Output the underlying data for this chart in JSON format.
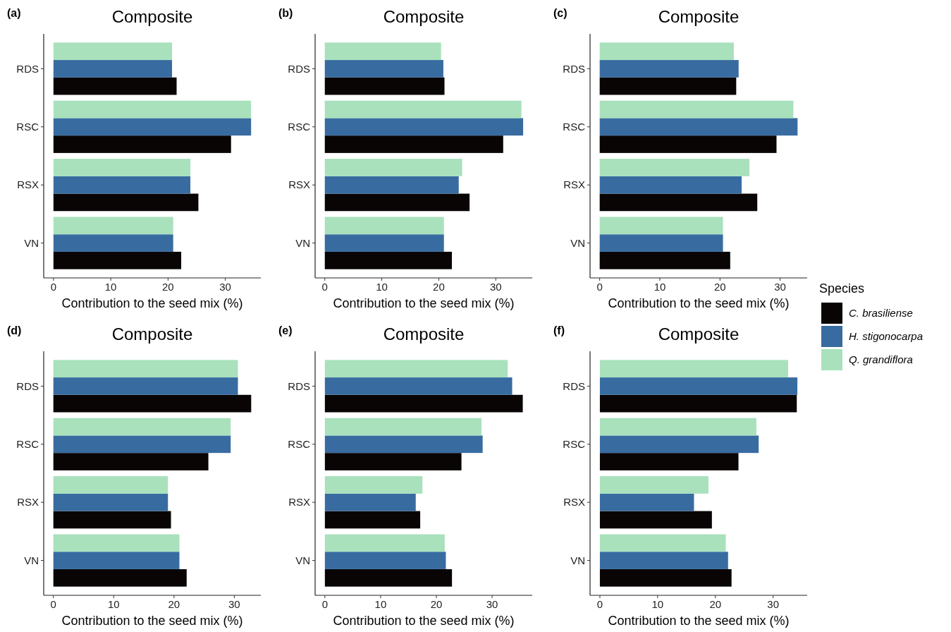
{
  "chart_data": [
    {
      "type": "bar",
      "orientation": "horizontal",
      "title": "Composite",
      "xlabel": "Contribution to the seed mix (%)",
      "annotations": [
        "(a)"
      ],
      "categories": [
        "RDS",
        "RSC",
        "RSX",
        "VN"
      ],
      "xlim": [
        -1.7,
        36.2
      ],
      "xticks": [
        0,
        10,
        20,
        30
      ],
      "grid": false,
      "series": [
        {
          "color": "#0a0505",
          "values": [
            21.5,
            31.0,
            25.3,
            22.3
          ]
        },
        {
          "color": "#386ca0",
          "values": [
            20.7,
            34.5,
            23.9,
            20.9
          ]
        },
        {
          "color": "#a8e1bc",
          "values": [
            20.7,
            34.5,
            23.9,
            20.9
          ]
        }
      ]
    },
    {
      "type": "bar",
      "orientation": "horizontal",
      "title": "Composite",
      "xlabel": "Contribution to the seed mix (%)",
      "annotations": [
        "(b)"
      ],
      "categories": [
        "RDS",
        "RSC",
        "RSX",
        "VN"
      ],
      "xlim": [
        -1.7,
        36.4
      ],
      "xticks": [
        0,
        10,
        20,
        30
      ],
      "grid": false,
      "series": [
        {
          "color": "#0a0505",
          "values": [
            21.0,
            31.3,
            25.4,
            22.3
          ]
        },
        {
          "color": "#386ca0",
          "values": [
            20.8,
            34.8,
            23.5,
            20.9
          ]
        },
        {
          "color": "#a8e1bc",
          "values": [
            20.4,
            34.5,
            24.1,
            20.9
          ]
        }
      ]
    },
    {
      "type": "bar",
      "orientation": "horizontal",
      "title": "Composite",
      "xlabel": "Contribution to the seed mix (%)",
      "annotations": [
        "(c)"
      ],
      "categories": [
        "RDS",
        "RSC",
        "RSX",
        "VN"
      ],
      "xlim": [
        -1.6,
        34.5
      ],
      "xticks": [
        0,
        10,
        20,
        30
      ],
      "grid": false,
      "legend": "right",
      "legend_title": "Species",
      "series": [
        {
          "name": "C. brasiliense",
          "color": "#0a0505",
          "values": [
            22.7,
            29.4,
            26.2,
            21.7
          ]
        },
        {
          "name": "H. stigonocarpa",
          "color": "#386ca0",
          "values": [
            23.1,
            32.9,
            23.6,
            20.5
          ]
        },
        {
          "name": "Q. grandiflora",
          "color": "#a8e1bc",
          "values": [
            22.3,
            32.2,
            24.9,
            20.5
          ]
        }
      ]
    },
    {
      "type": "bar",
      "orientation": "horizontal",
      "title": "Composite",
      "xlabel": "Contribution to the seed mix (%)",
      "annotations": [
        "(d)"
      ],
      "categories": [
        "RDS",
        "RSC",
        "RSX",
        "VN"
      ],
      "xlim": [
        -1.6,
        34.4
      ],
      "xticks": [
        0,
        10,
        20,
        30
      ],
      "grid": false,
      "series": [
        {
          "color": "#0a0505",
          "values": [
            32.8,
            25.7,
            19.5,
            22.1
          ]
        },
        {
          "color": "#386ca0",
          "values": [
            30.6,
            29.4,
            19.0,
            20.9
          ]
        },
        {
          "color": "#a8e1bc",
          "values": [
            30.6,
            29.4,
            19.0,
            20.9
          ]
        }
      ]
    },
    {
      "type": "bar",
      "orientation": "horizontal",
      "title": "Composite",
      "xlabel": "Contribution to the seed mix (%)",
      "annotations": [
        "(e)"
      ],
      "categories": [
        "RDS",
        "RSC",
        "RSX",
        "VN"
      ],
      "xlim": [
        -1.75,
        37.2
      ],
      "xticks": [
        0,
        10,
        20,
        30
      ],
      "grid": false,
      "series": [
        {
          "color": "#0a0505",
          "values": [
            35.5,
            24.5,
            17.1,
            22.8
          ]
        },
        {
          "color": "#386ca0",
          "values": [
            33.6,
            28.3,
            16.3,
            21.7
          ]
        },
        {
          "color": "#a8e1bc",
          "values": [
            32.8,
            28.1,
            17.5,
            21.5
          ]
        }
      ]
    },
    {
      "type": "bar",
      "orientation": "horizontal",
      "title": "Composite",
      "xlabel": "Contribution to the seed mix (%)",
      "annotations": [
        "(f)"
      ],
      "categories": [
        "RDS",
        "RSC",
        "RSX",
        "VN"
      ],
      "xlim": [
        -1.7,
        35.9
      ],
      "xticks": [
        0,
        10,
        20,
        30
      ],
      "grid": false,
      "series": [
        {
          "color": "#0a0505",
          "values": [
            34.1,
            24.0,
            19.4,
            22.8
          ]
        },
        {
          "color": "#386ca0",
          "values": [
            34.2,
            27.5,
            16.3,
            22.2
          ]
        },
        {
          "color": "#a8e1bc",
          "values": [
            32.6,
            27.1,
            18.8,
            21.8
          ]
        }
      ]
    }
  ]
}
